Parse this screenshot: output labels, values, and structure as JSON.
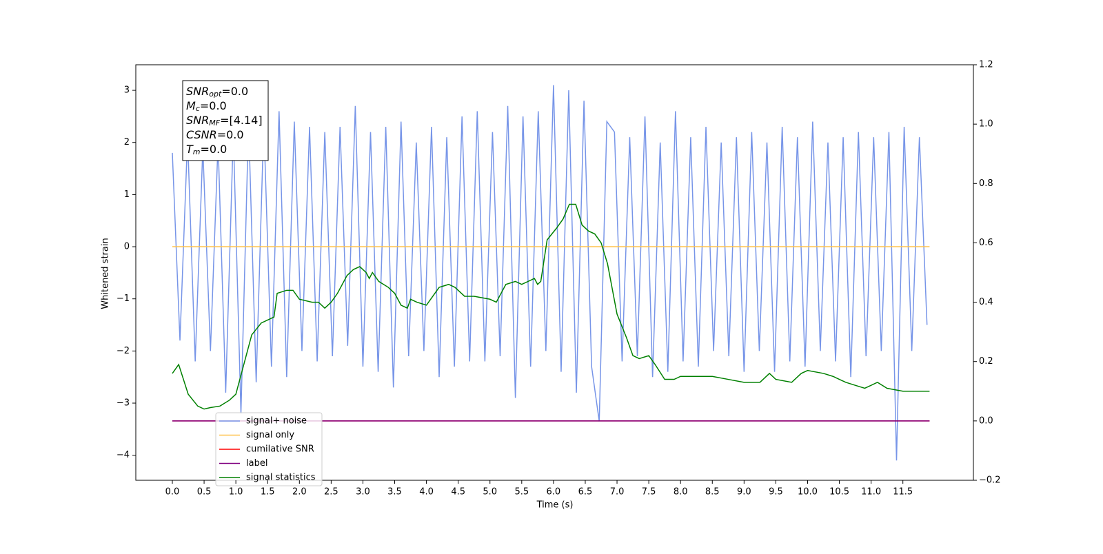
{
  "chart_data": {
    "type": "line",
    "xlabel": "Time (s)",
    "ylabel": "Whitened strain",
    "xlim": [
      -0.575,
      12.61
    ],
    "ylim": [
      -4.48,
      3.49
    ],
    "y2lim": [
      -0.2,
      1.2
    ],
    "xticks": [
      {
        "value": 0,
        "label": "0.0"
      },
      {
        "value": 0.5,
        "label": "0.5"
      },
      {
        "value": 1,
        "label": "1.0"
      },
      {
        "value": 1.5,
        "label": "1.5"
      },
      {
        "value": 2,
        "label": "2.0"
      },
      {
        "value": 2.5,
        "label": "2.5"
      },
      {
        "value": 3,
        "label": "3.0"
      },
      {
        "value": 3.5,
        "label": "3.5"
      },
      {
        "value": 4,
        "label": "4.0"
      },
      {
        "value": 4.5,
        "label": "4.5"
      },
      {
        "value": 5,
        "label": "5.0"
      },
      {
        "value": 5.5,
        "label": "5.5"
      },
      {
        "value": 6,
        "label": "6.0"
      },
      {
        "value": 6.5,
        "label": "6.5"
      },
      {
        "value": 7,
        "label": "7.0"
      },
      {
        "value": 7.5,
        "label": "7.5"
      },
      {
        "value": 8,
        "label": "8.0"
      },
      {
        "value": 8.5,
        "label": "8.5"
      },
      {
        "value": 9,
        "label": "9.0"
      },
      {
        "value": 9.5,
        "label": "9.5"
      },
      {
        "value": 10,
        "label": "10.0"
      },
      {
        "value": 10.5,
        "label": "10.5"
      },
      {
        "value": 11,
        "label": "11.0"
      },
      {
        "value": 11.5,
        "label": "11.5"
      }
    ],
    "yticks": [
      {
        "value": -4,
        "label": "−4"
      },
      {
        "value": -3,
        "label": "−3"
      },
      {
        "value": -2,
        "label": "−2"
      },
      {
        "value": -1,
        "label": "−1"
      },
      0,
      1,
      2,
      3
    ],
    "y2ticks": [
      {
        "value": -0.2,
        "label": "−0.2"
      },
      {
        "value": 0,
        "label": "0.0"
      },
      {
        "value": 0.2,
        "label": "0.2"
      },
      {
        "value": 0.4,
        "label": "0.4"
      },
      {
        "value": 0.6,
        "label": "0.6"
      },
      {
        "value": 0.8,
        "label": "0.8"
      },
      {
        "value": 1.0,
        "label": "1.0"
      },
      {
        "value": 1.2,
        "label": "1.2"
      }
    ],
    "legend": "lower left",
    "annotation_lines": [
      {
        "symbol": "SNR",
        "subscript": "opt",
        "text": "=0.0"
      },
      {
        "symbol": "M",
        "subscript": "c",
        "text": "=0.0"
      },
      {
        "symbol": "SNR",
        "subscript": "MF",
        "text": "=[4.14]"
      },
      {
        "symbol": "CSNR",
        "text": "=0.0"
      },
      {
        "symbol": "T",
        "subscript": "m",
        "text": "=0.0"
      }
    ],
    "series": [
      {
        "name": "signal+ noise",
        "color": "#7795e8",
        "x": [
          0,
          0.12,
          0.24,
          0.36,
          0.48,
          0.6,
          0.72,
          0.84,
          0.96,
          1.08,
          1.2,
          1.32,
          1.44,
          1.56,
          1.68,
          1.8,
          1.92,
          2.04,
          2.16,
          2.28,
          2.4,
          2.52,
          2.64,
          2.76,
          2.88,
          3.0,
          3.12,
          3.24,
          3.36,
          3.48,
          3.6,
          3.72,
          3.84,
          3.96,
          4.08,
          4.2,
          4.32,
          4.44,
          4.56,
          4.68,
          4.8,
          4.92,
          5.04,
          5.16,
          5.28,
          5.4,
          5.52,
          5.64,
          5.76,
          5.88,
          6.0,
          6.12,
          6.24,
          6.36,
          6.48,
          6.6,
          6.72,
          6.84,
          6.96,
          7.08,
          7.2,
          7.32,
          7.44,
          7.56,
          7.68,
          7.8,
          7.92,
          8.04,
          8.16,
          8.28,
          8.4,
          8.52,
          8.64,
          8.76,
          8.88,
          9.0,
          9.12,
          9.24,
          9.36,
          9.48,
          9.6,
          9.72,
          9.84,
          9.96,
          10.08,
          10.2,
          10.32,
          10.44,
          10.56,
          10.68,
          10.8,
          10.92,
          11.04,
          11.16,
          11.28,
          11.4,
          11.52,
          11.64,
          11.76,
          11.88
        ],
        "values": [
          1.8,
          -1.8,
          2.1,
          -2.2,
          1.9,
          -2.0,
          2.0,
          -2.8,
          2.2,
          -3.2,
          2.4,
          -2.6,
          2.4,
          -2.3,
          2.6,
          -2.5,
          2.4,
          -2.0,
          2.3,
          -2.2,
          2.2,
          -2.1,
          2.3,
          -1.9,
          2.7,
          -2.3,
          2.2,
          -2.4,
          2.3,
          -2.7,
          2.4,
          -2.1,
          2.0,
          -2.0,
          2.3,
          -2.5,
          2.1,
          -2.3,
          2.5,
          -2.2,
          2.6,
          -2.2,
          2.2,
          -2.1,
          2.7,
          -2.9,
          2.5,
          -2.3,
          2.6,
          -2.0,
          3.1,
          -2.4,
          3.0,
          -2.8,
          2.8,
          -2.3,
          -3.35,
          2.4,
          2.2,
          -2.2,
          2.1,
          -2.1,
          2.5,
          -2.5,
          2.0,
          -2.4,
          2.6,
          -2.2,
          2.1,
          -2.3,
          2.3,
          -2.0,
          2.0,
          -2.1,
          2.1,
          -2.4,
          2.2,
          -2.0,
          2.0,
          -2.4,
          2.3,
          -2.2,
          2.1,
          -2.3,
          2.4,
          -2.0,
          2.0,
          -2.2,
          2.1,
          -2.5,
          2.2,
          -2.1,
          2.1,
          -2.0,
          2.2,
          -4.1,
          2.3,
          -2.0,
          2.1,
          -1.5
        ]
      },
      {
        "name": "signal only",
        "color": "#ffc34d",
        "x": [
          0,
          11.92
        ],
        "values": [
          0,
          0
        ]
      },
      {
        "name": "cumilative SNR",
        "color": "#ff0000",
        "axis": "y2",
        "x": [
          0,
          11.92
        ],
        "values": [
          0,
          0
        ]
      },
      {
        "name": "label",
        "color": "#800080",
        "axis": "y2",
        "x": [
          0,
          11.92
        ],
        "values": [
          0,
          0
        ]
      },
      {
        "name": "signal statistics",
        "color": "#008000",
        "axis": "y2",
        "x": [
          0,
          0.1,
          0.25,
          0.4,
          0.5,
          0.6,
          0.75,
          0.9,
          1.0,
          1.1,
          1.25,
          1.4,
          1.5,
          1.6,
          1.65,
          1.8,
          1.9,
          2.0,
          2.2,
          2.3,
          2.4,
          2.5,
          2.6,
          2.75,
          2.85,
          2.95,
          3.05,
          3.1,
          3.15,
          3.25,
          3.4,
          3.5,
          3.6,
          3.7,
          3.75,
          3.85,
          4.0,
          4.1,
          4.2,
          4.35,
          4.45,
          4.6,
          4.75,
          5.0,
          5.1,
          5.25,
          5.4,
          5.5,
          5.7,
          5.75,
          5.8,
          5.9,
          6.05,
          6.15,
          6.25,
          6.35,
          6.45,
          6.55,
          6.65,
          6.75,
          6.85,
          7.0,
          7.15,
          7.25,
          7.35,
          7.5,
          7.6,
          7.75,
          7.9,
          8.0,
          8.25,
          8.5,
          8.75,
          9.0,
          9.25,
          9.4,
          9.5,
          9.75,
          9.9,
          10.0,
          10.25,
          10.4,
          10.5,
          10.6,
          10.75,
          10.9,
          11.0,
          11.1,
          11.25,
          11.5,
          11.6,
          11.75,
          11.92
        ],
        "values": [
          0.16,
          0.19,
          0.09,
          0.05,
          0.04,
          0.045,
          0.05,
          0.07,
          0.09,
          0.17,
          0.29,
          0.33,
          0.34,
          0.35,
          0.43,
          0.44,
          0.44,
          0.41,
          0.4,
          0.4,
          0.38,
          0.4,
          0.43,
          0.49,
          0.51,
          0.52,
          0.5,
          0.48,
          0.5,
          0.47,
          0.45,
          0.43,
          0.39,
          0.38,
          0.41,
          0.4,
          0.39,
          0.42,
          0.45,
          0.46,
          0.45,
          0.42,
          0.42,
          0.41,
          0.4,
          0.46,
          0.47,
          0.46,
          0.48,
          0.46,
          0.47,
          0.61,
          0.65,
          0.68,
          0.73,
          0.73,
          0.66,
          0.64,
          0.63,
          0.6,
          0.53,
          0.36,
          0.28,
          0.22,
          0.21,
          0.22,
          0.19,
          0.14,
          0.14,
          0.15,
          0.15,
          0.15,
          0.14,
          0.13,
          0.13,
          0.16,
          0.14,
          0.13,
          0.16,
          0.17,
          0.16,
          0.15,
          0.14,
          0.13,
          0.12,
          0.11,
          0.12,
          0.13,
          0.11,
          0.1,
          0.1,
          0.1,
          0.1
        ]
      }
    ]
  }
}
